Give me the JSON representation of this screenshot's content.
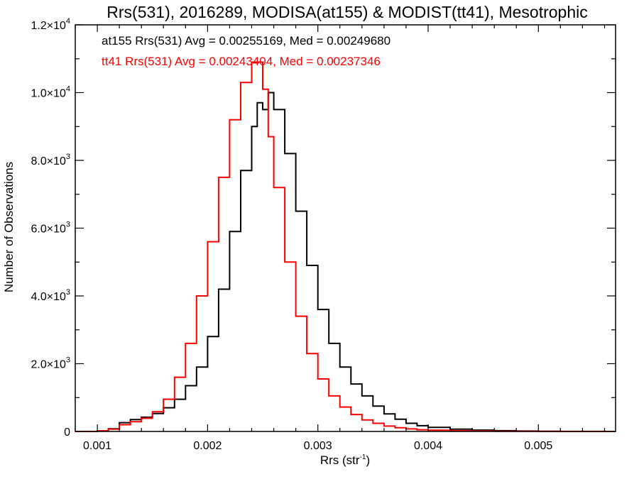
{
  "chart_data": {
    "type": "line",
    "title": "Rrs(531), 2016289, MODISA(at155) & MODIST(tt41), Mesotrophic",
    "xlabel": {
      "base": "Rrs (str",
      "sup": "-1",
      "tail": ")"
    },
    "ylabel": "Number of Observations",
    "xlim": [
      0.0008,
      0.0057
    ],
    "ylim": [
      0,
      12000
    ],
    "grid": false,
    "x_ticks": [
      {
        "value": 0.001,
        "label": "0.001"
      },
      {
        "value": 0.002,
        "label": "0.002"
      },
      {
        "value": 0.003,
        "label": "0.003"
      },
      {
        "value": 0.004,
        "label": "0.004"
      },
      {
        "value": 0.005,
        "label": "0.005"
      }
    ],
    "y_ticks": [
      {
        "value": 0,
        "mant": "0",
        "exp": ""
      },
      {
        "value": 2000,
        "mant": "2.0×10",
        "exp": "3"
      },
      {
        "value": 4000,
        "mant": "4.0×10",
        "exp": "3"
      },
      {
        "value": 6000,
        "mant": "6.0×10",
        "exp": "3"
      },
      {
        "value": 8000,
        "mant": "8.0×10",
        "exp": "3"
      },
      {
        "value": 10000,
        "mant": "1.0×10",
        "exp": "4"
      },
      {
        "value": 12000,
        "mant": "1.2×10",
        "exp": "4"
      }
    ],
    "legend_placement": "top-left",
    "series": [
      {
        "name": "at155",
        "color": "#000000",
        "annotation": "at155 Rrs(531) Avg = 0.00255169, Med = 0.00249680",
        "x": [
          0.0008,
          0.0009,
          0.001,
          0.0011,
          0.0012,
          0.0013,
          0.0014,
          0.0015,
          0.0016,
          0.0017,
          0.0018,
          0.0019,
          0.002,
          0.0021,
          0.0022,
          0.0023,
          0.0024,
          0.00245,
          0.0025,
          0.00255,
          0.0026,
          0.0027,
          0.0028,
          0.0029,
          0.003,
          0.0031,
          0.0032,
          0.0033,
          0.0034,
          0.0035,
          0.0036,
          0.0037,
          0.0038,
          0.0039,
          0.004,
          0.0042,
          0.0044,
          0.0046,
          0.0048,
          0.005,
          0.0052,
          0.0054,
          0.0056,
          0.0057
        ],
        "y": [
          0,
          0,
          20,
          80,
          260,
          350,
          420,
          530,
          700,
          950,
          1350,
          1900,
          2800,
          4200,
          5900,
          7700,
          9000,
          9700,
          9500,
          10000,
          9500,
          8200,
          6500,
          4900,
          3600,
          2600,
          1900,
          1400,
          1050,
          750,
          520,
          360,
          240,
          170,
          120,
          70,
          40,
          22,
          12,
          6,
          3,
          2,
          1,
          0
        ]
      },
      {
        "name": "tt41",
        "color": "#ff0000",
        "annotation": "tt41 Rrs(531) Avg = 0.00243404, Med = 0.00237346",
        "x": [
          0.0008,
          0.0009,
          0.001,
          0.0011,
          0.0012,
          0.0013,
          0.0014,
          0.0015,
          0.0016,
          0.0017,
          0.0018,
          0.0019,
          0.002,
          0.0021,
          0.0022,
          0.0023,
          0.0024,
          0.0025,
          0.00255,
          0.0026,
          0.0027,
          0.0028,
          0.0029,
          0.003,
          0.0031,
          0.0032,
          0.0033,
          0.0034,
          0.0035,
          0.0036,
          0.0037,
          0.0038,
          0.0039,
          0.004,
          0.0042,
          0.0044,
          0.0046,
          0.0048,
          0.005,
          0.0052,
          0.0054,
          0.0056,
          0.0057
        ],
        "y": [
          0,
          0,
          20,
          70,
          200,
          290,
          390,
          580,
          950,
          1600,
          2600,
          4000,
          5600,
          7500,
          9200,
          10300,
          10900,
          10100,
          8700,
          7200,
          5000,
          3400,
          2300,
          1550,
          1050,
          720,
          500,
          340,
          240,
          160,
          110,
          75,
          50,
          35,
          20,
          12,
          7,
          4,
          2,
          1,
          1,
          0,
          0
        ]
      }
    ]
  }
}
